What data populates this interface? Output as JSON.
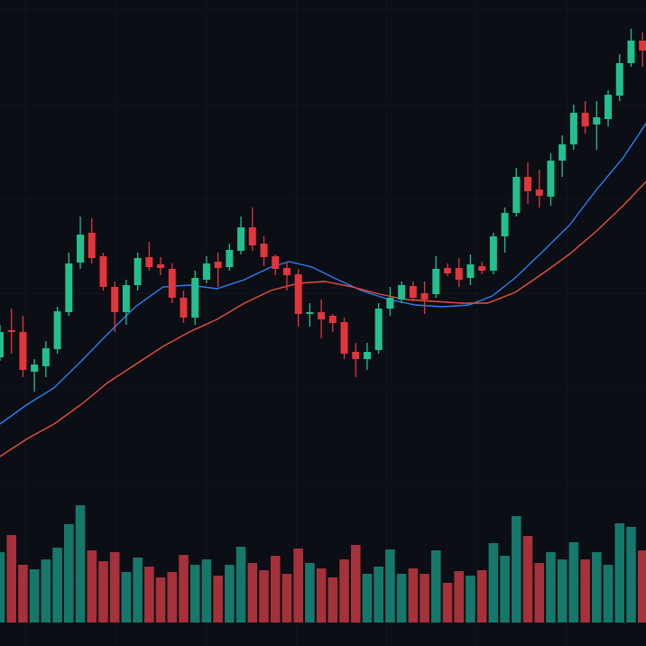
{
  "chart_data": {
    "type": "candlestick",
    "up_color": "#22c08f",
    "down_color": "#e2353c",
    "volume_up_color": "#16786b",
    "volume_down_color": "#a5313a",
    "xlim": [
      0,
      56.3
    ],
    "ylim": [
      176,
      716
    ],
    "volume_ylim": [
      0,
      150
    ],
    "open": [
      320,
      350,
      348,
      304,
      310,
      329,
      370,
      425,
      458,
      432,
      398,
      370,
      400,
      431,
      423,
      418,
      386,
      364,
      406,
      426,
      420,
      438,
      464,
      446,
      432,
      419,
      412,
      368,
      370,
      366,
      359,
      326,
      318,
      328,
      374,
      384,
      399,
      391,
      390,
      419,
      419,
      408,
      421,
      416,
      454,
      480,
      520,
      506,
      498,
      538,
      556,
      591,
      578,
      584,
      610,
      646,
      671
    ],
    "high": [
      356,
      374,
      366,
      318,
      338,
      376,
      436,
      476,
      474,
      436,
      404,
      406,
      436,
      448,
      431,
      424,
      394,
      416,
      432,
      436,
      446,
      476,
      486,
      454,
      434,
      426,
      418,
      380,
      384,
      368,
      364,
      336,
      336,
      380,
      398,
      404,
      404,
      404,
      432,
      424,
      430,
      434,
      426,
      458,
      486,
      530,
      536,
      528,
      546,
      566,
      600,
      604,
      604,
      616,
      656,
      684,
      680
    ],
    "low": [
      316,
      324,
      298,
      282,
      298,
      324,
      366,
      418,
      424,
      394,
      348,
      356,
      394,
      416,
      411,
      380,
      358,
      356,
      402,
      398,
      416,
      434,
      438,
      421,
      411,
      394,
      354,
      354,
      341,
      348,
      318,
      298,
      306,
      324,
      366,
      380,
      382,
      368,
      386,
      410,
      398,
      400,
      412,
      412,
      436,
      476,
      490,
      486,
      488,
      520,
      550,
      568,
      550,
      576,
      604,
      642,
      642
    ],
    "close": [
      348,
      348,
      306,
      312,
      330,
      371,
      424,
      456,
      430,
      398,
      370,
      400,
      430,
      420,
      419,
      386,
      364,
      408,
      424,
      419,
      439,
      464,
      444,
      431,
      418,
      411,
      368,
      370,
      362,
      358,
      324,
      318,
      326,
      374,
      386,
      400,
      386,
      384,
      418,
      413,
      406,
      423,
      416,
      454,
      480,
      520,
      504,
      499,
      538,
      556,
      591,
      576,
      586,
      611,
      646,
      671,
      660
    ],
    "volume": [
      78,
      97,
      64,
      59,
      70,
      83,
      109,
      130,
      80,
      68,
      78,
      56,
      72,
      62,
      50,
      56,
      75,
      64,
      70,
      52,
      64,
      84,
      66,
      58,
      74,
      54,
      82,
      66,
      60,
      50,
      70,
      86,
      54,
      62,
      81,
      54,
      60,
      54,
      80,
      44,
      57,
      52,
      58,
      88,
      74,
      118,
      96,
      66,
      78,
      70,
      89,
      70,
      78,
      64,
      110,
      106,
      80
    ],
    "lines": [
      {
        "color": "#2f7df6",
        "x": [
          0,
          2.4,
          4.7,
          7.1,
          9.4,
          11.8,
          14.2,
          16.5,
          18.9,
          21.3,
          23.6,
          25.2,
          27.2,
          29.1,
          31.5,
          33.9,
          36.2,
          38.6,
          40.9,
          42.9,
          44.9,
          47.2,
          49.6,
          52,
          54.3,
          56.4
        ],
        "values": [
          246,
          268,
          286,
          316,
          346,
          376,
          398,
          400,
          396,
          406,
          420,
          426,
          420,
          408,
          394,
          384,
          378,
          376,
          378,
          388,
          408,
          436,
          466,
          506,
          541,
          581
        ]
      },
      {
        "color": "#e8503a",
        "x": [
          0,
          2.4,
          4.7,
          7.1,
          9.4,
          11.8,
          14.2,
          16.5,
          18.9,
          21.3,
          23.6,
          26,
          28.3,
          30.7,
          33.1,
          35.4,
          37.8,
          40.2,
          42.5,
          44.9,
          47.2,
          49.6,
          52,
          54.3,
          56.4
        ],
        "values": [
          210,
          230,
          246,
          268,
          292,
          312,
          332,
          348,
          362,
          380,
          394,
          402,
          404,
          398,
          390,
          384,
          382,
          380,
          380,
          392,
          412,
          434,
          460,
          488,
          516
        ]
      }
    ]
  }
}
